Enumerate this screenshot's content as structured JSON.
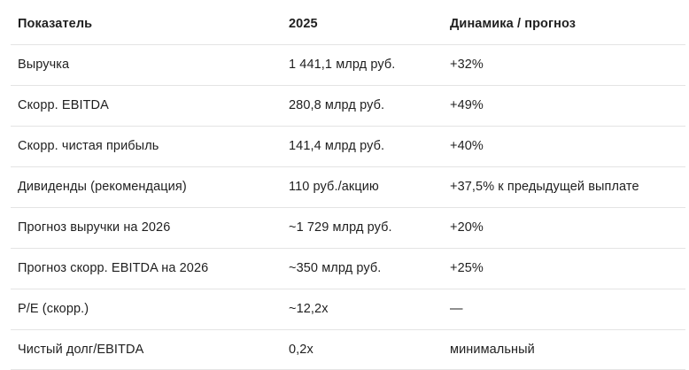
{
  "table": {
    "headers": [
      "Показатель",
      "2025",
      "Динамика / прогноз"
    ],
    "rows": [
      [
        "Выручка",
        "1 441,1 млрд руб.",
        "+32%"
      ],
      [
        "Скорр. EBITDA",
        "280,8 млрд руб.",
        "+49%"
      ],
      [
        "Скорр. чистая прибыль",
        "141,4 млрд руб.",
        "+40%"
      ],
      [
        "Дивиденды (рекомендация)",
        "110 руб./акцию",
        "+37,5% к предыдущей выплате"
      ],
      [
        "Прогноз выручки на 2026",
        "~1 729 млрд руб.",
        "+20%"
      ],
      [
        "Прогноз скорр. EBITDA на 2026",
        "~350 млрд руб.",
        "+25%"
      ],
      [
        "P/E (скорр.)",
        "~12,2x",
        "—"
      ],
      [
        "Чистый долг/EBITDA",
        "0,2x",
        "минимальный"
      ]
    ]
  }
}
